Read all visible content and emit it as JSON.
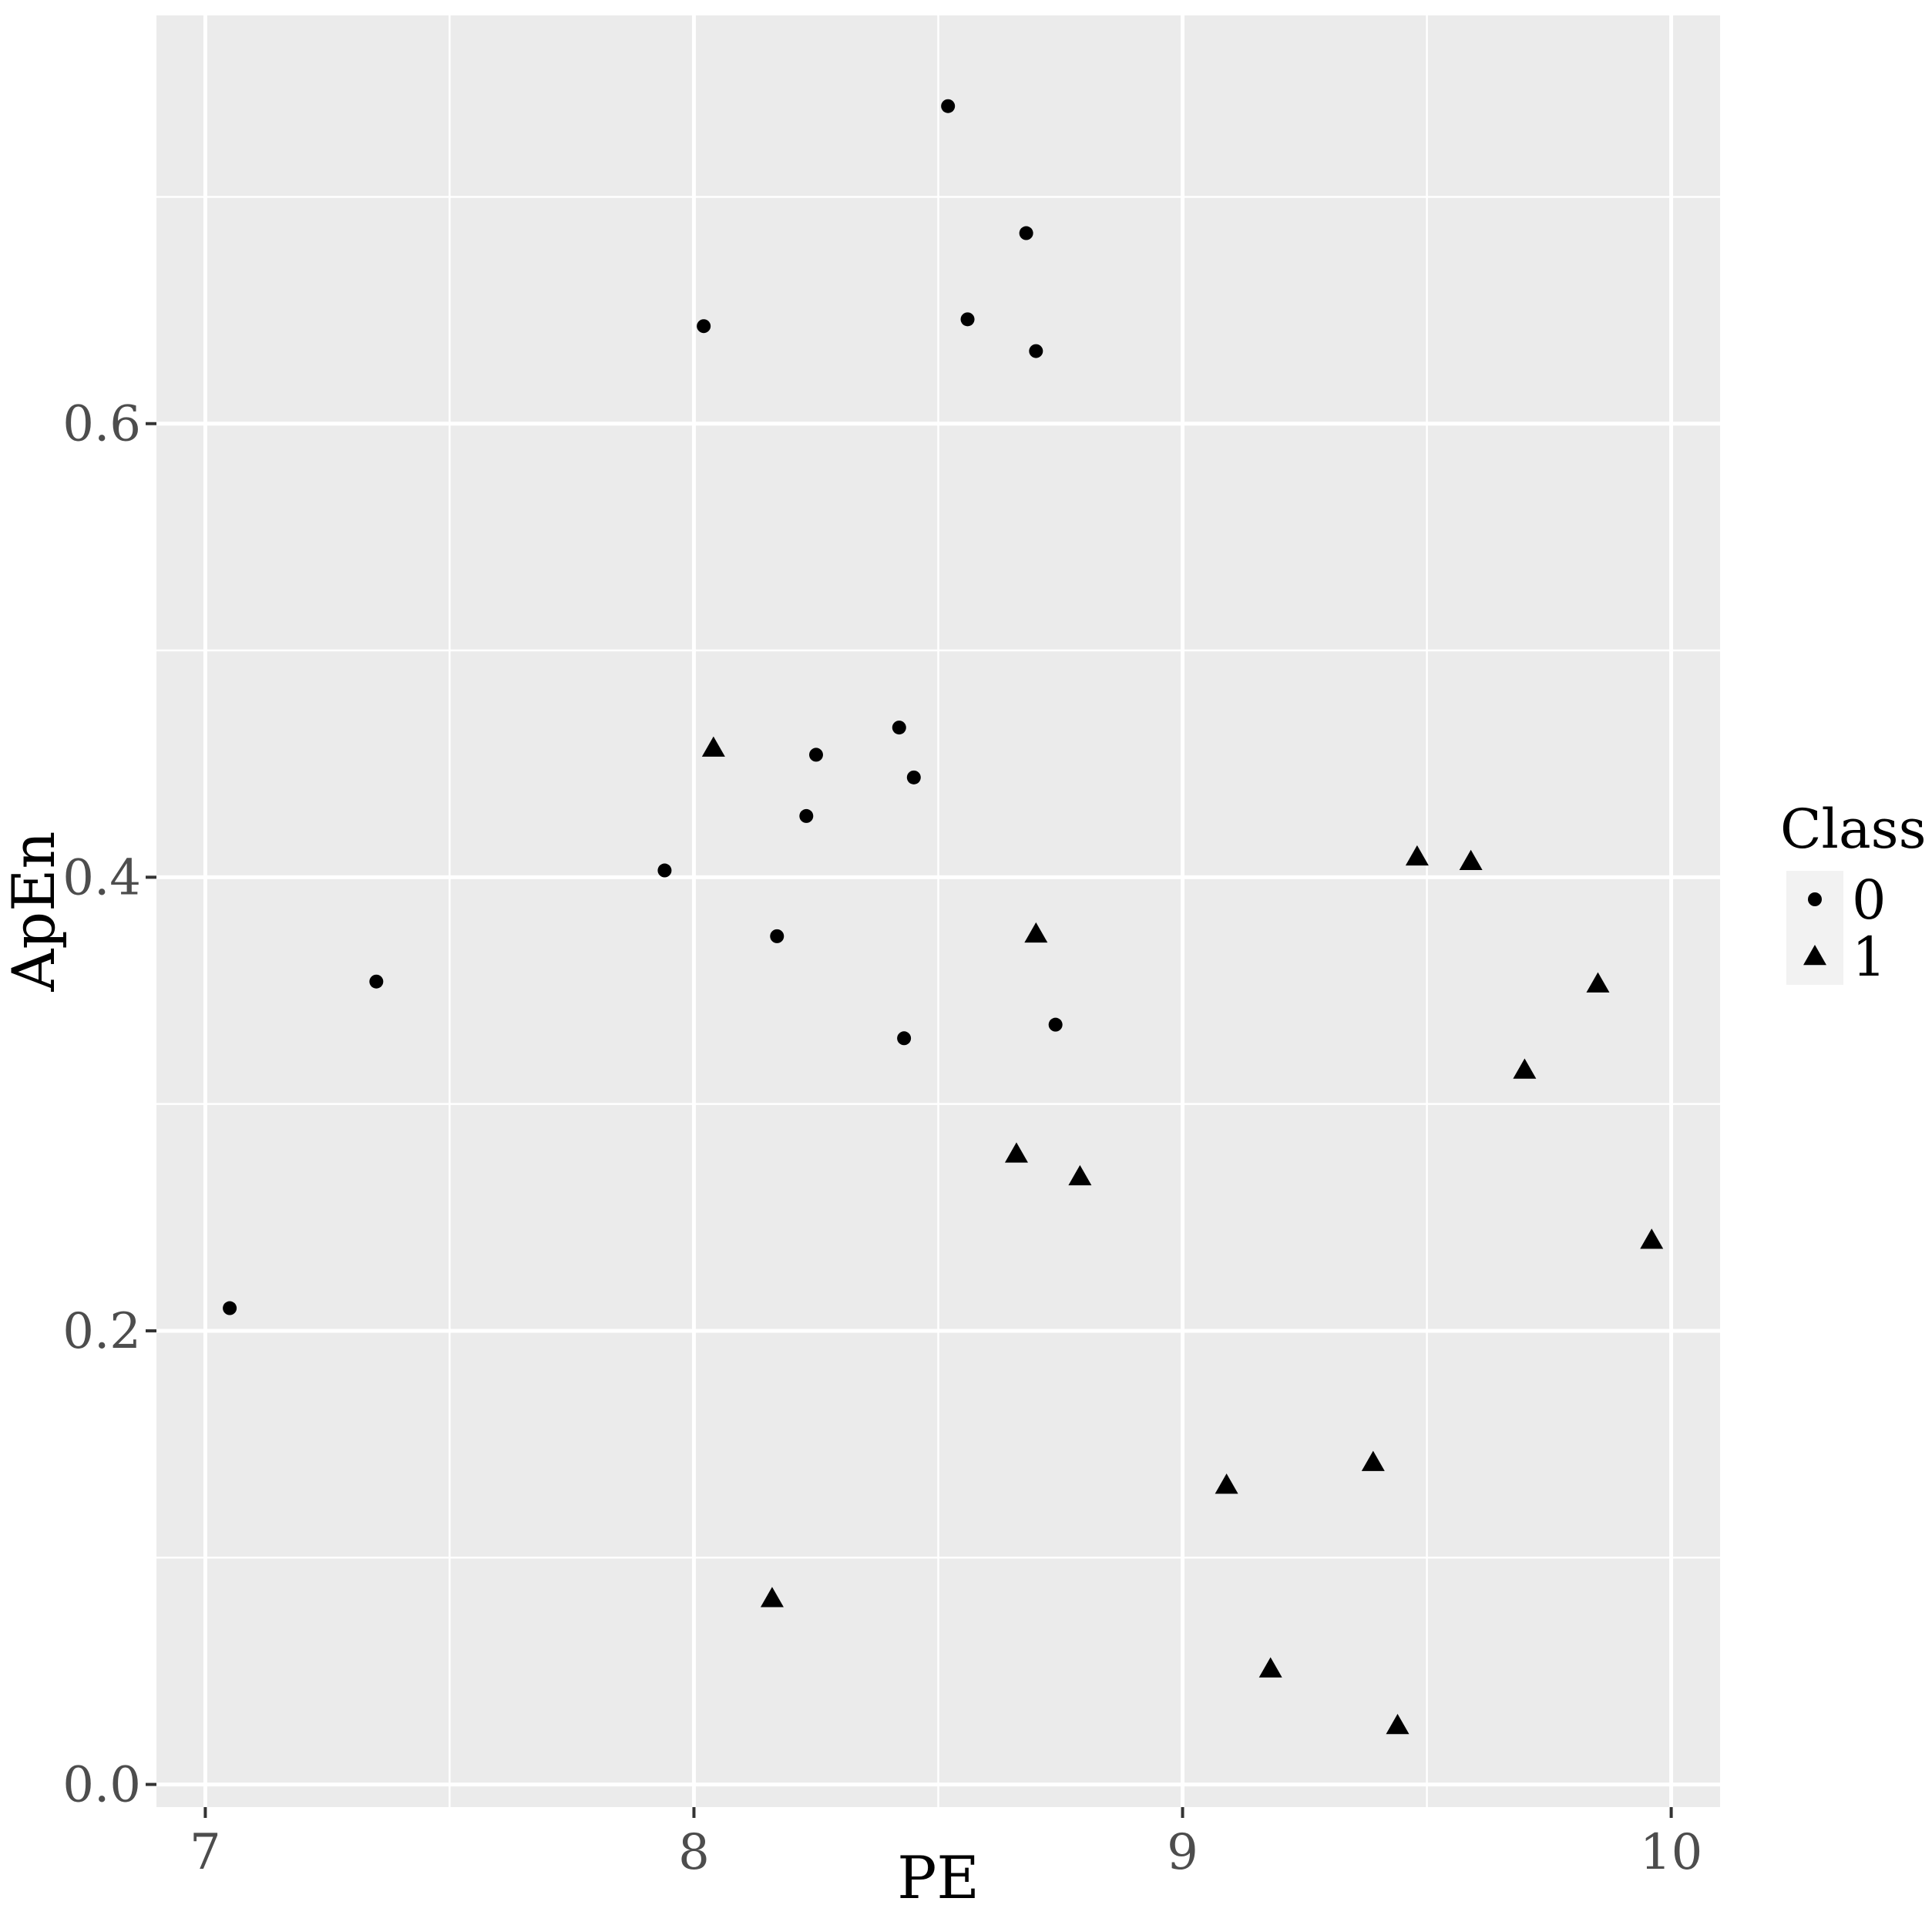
{
  "chart_data": {
    "type": "scatter",
    "xlabel": "PE",
    "ylabel": "ApEn",
    "xlim": [
      6.9,
      10.1
    ],
    "ylim": [
      -0.01,
      0.78
    ],
    "x_ticks": [
      7,
      8,
      9,
      10
    ],
    "x_tick_labels": [
      "7",
      "8",
      "9",
      "10"
    ],
    "y_ticks": [
      0.0,
      0.2,
      0.4,
      0.6
    ],
    "y_tick_labels": [
      "0.0",
      "0.2",
      "0.4",
      "0.6"
    ],
    "x_minor_grid": [
      7.5,
      8.5,
      9.5
    ],
    "y_minor_grid": [
      0.1,
      0.3,
      0.5,
      0.7
    ],
    "grid": true,
    "panel_background": "#ebebeb",
    "grid_color": "#ffffff",
    "legend": {
      "title": "Class",
      "position": "right",
      "entries": [
        {
          "label": "0",
          "shape": "circle"
        },
        {
          "label": "1",
          "shape": "triangle"
        }
      ]
    },
    "series": [
      {
        "name": "0",
        "shape": "circle",
        "color": "#000000",
        "points": [
          {
            "x": 7.05,
            "y": 0.21
          },
          {
            "x": 7.35,
            "y": 0.354
          },
          {
            "x": 7.94,
            "y": 0.403
          },
          {
            "x": 8.02,
            "y": 0.643
          },
          {
            "x": 8.17,
            "y": 0.374
          },
          {
            "x": 8.23,
            "y": 0.427
          },
          {
            "x": 8.25,
            "y": 0.454
          },
          {
            "x": 8.42,
            "y": 0.466
          },
          {
            "x": 8.43,
            "y": 0.329
          },
          {
            "x": 8.45,
            "y": 0.444
          },
          {
            "x": 8.52,
            "y": 0.74
          },
          {
            "x": 8.56,
            "y": 0.646
          },
          {
            "x": 8.68,
            "y": 0.684
          },
          {
            "x": 8.7,
            "y": 0.632
          },
          {
            "x": 8.74,
            "y": 0.335
          }
        ]
      },
      {
        "name": "1",
        "shape": "triangle",
        "color": "#000000",
        "points": [
          {
            "x": 8.04,
            "y": 0.457
          },
          {
            "x": 8.16,
            "y": 0.082
          },
          {
            "x": 8.66,
            "y": 0.278
          },
          {
            "x": 8.7,
            "y": 0.375
          },
          {
            "x": 8.79,
            "y": 0.268
          },
          {
            "x": 9.09,
            "y": 0.132
          },
          {
            "x": 9.18,
            "y": 0.051
          },
          {
            "x": 9.39,
            "y": 0.142
          },
          {
            "x": 9.44,
            "y": 0.026
          },
          {
            "x": 9.48,
            "y": 0.409
          },
          {
            "x": 9.59,
            "y": 0.407
          },
          {
            "x": 9.7,
            "y": 0.315
          },
          {
            "x": 9.85,
            "y": 0.353
          },
          {
            "x": 9.96,
            "y": 0.24
          }
        ]
      }
    ]
  }
}
